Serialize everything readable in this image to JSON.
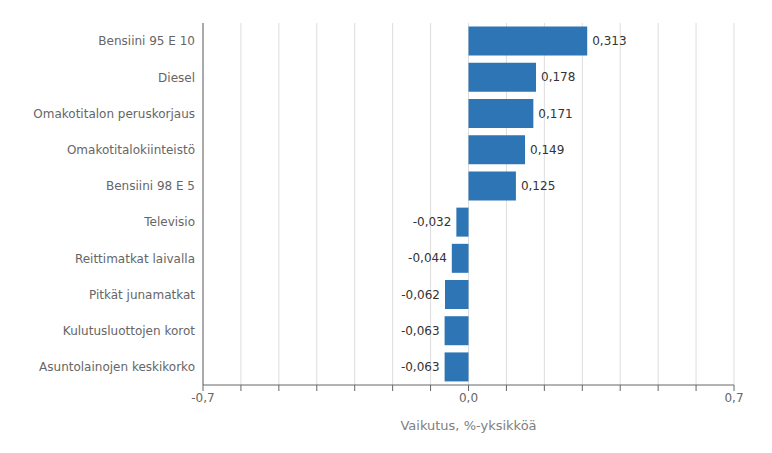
{
  "chart_data": {
    "type": "bar",
    "orientation": "horizontal",
    "categories": [
      "Asuntolainojen keskikorko",
      "Kulutusluottojen korot",
      "Pitkät junamatkat",
      "Reittimatkat laivalla",
      "Televisio",
      "Bensiini 98 E 5",
      "Omakotitalokiinteistö",
      "Omakotitalon peruskorjaus",
      "Diesel",
      "Bensiini 95 E 10"
    ],
    "values": [
      -0.063,
      -0.063,
      -0.062,
      -0.044,
      -0.032,
      0.125,
      0.149,
      0.171,
      0.178,
      0.313
    ],
    "value_labels": [
      "-0,063",
      "-0,063",
      "-0,062",
      "-0,044",
      "-0,032",
      "0,125",
      "0,149",
      "0,171",
      "0,178",
      "0,313"
    ],
    "data_labels": true,
    "color": "#2E75B6",
    "xlabel": "Vaikutus, %-yksikköä",
    "xlim": [
      -0.7,
      0.7
    ],
    "xticks": [
      {
        "value": -0.7,
        "label": "-0,7"
      },
      {
        "value": -0.6,
        "label": null
      },
      {
        "value": -0.5,
        "label": null
      },
      {
        "value": -0.4,
        "label": null
      },
      {
        "value": -0.3,
        "label": null
      },
      {
        "value": -0.2,
        "label": null
      },
      {
        "value": -0.1,
        "label": null
      },
      {
        "value": 0.0,
        "label": "0,0"
      },
      {
        "value": 0.1,
        "label": null
      },
      {
        "value": 0.2,
        "label": null
      },
      {
        "value": 0.3,
        "label": null
      },
      {
        "value": 0.4,
        "label": null
      },
      {
        "value": 0.5,
        "label": null
      },
      {
        "value": 0.6,
        "label": null
      },
      {
        "value": 0.7,
        "label": "0,7"
      }
    ],
    "grid": true
  }
}
